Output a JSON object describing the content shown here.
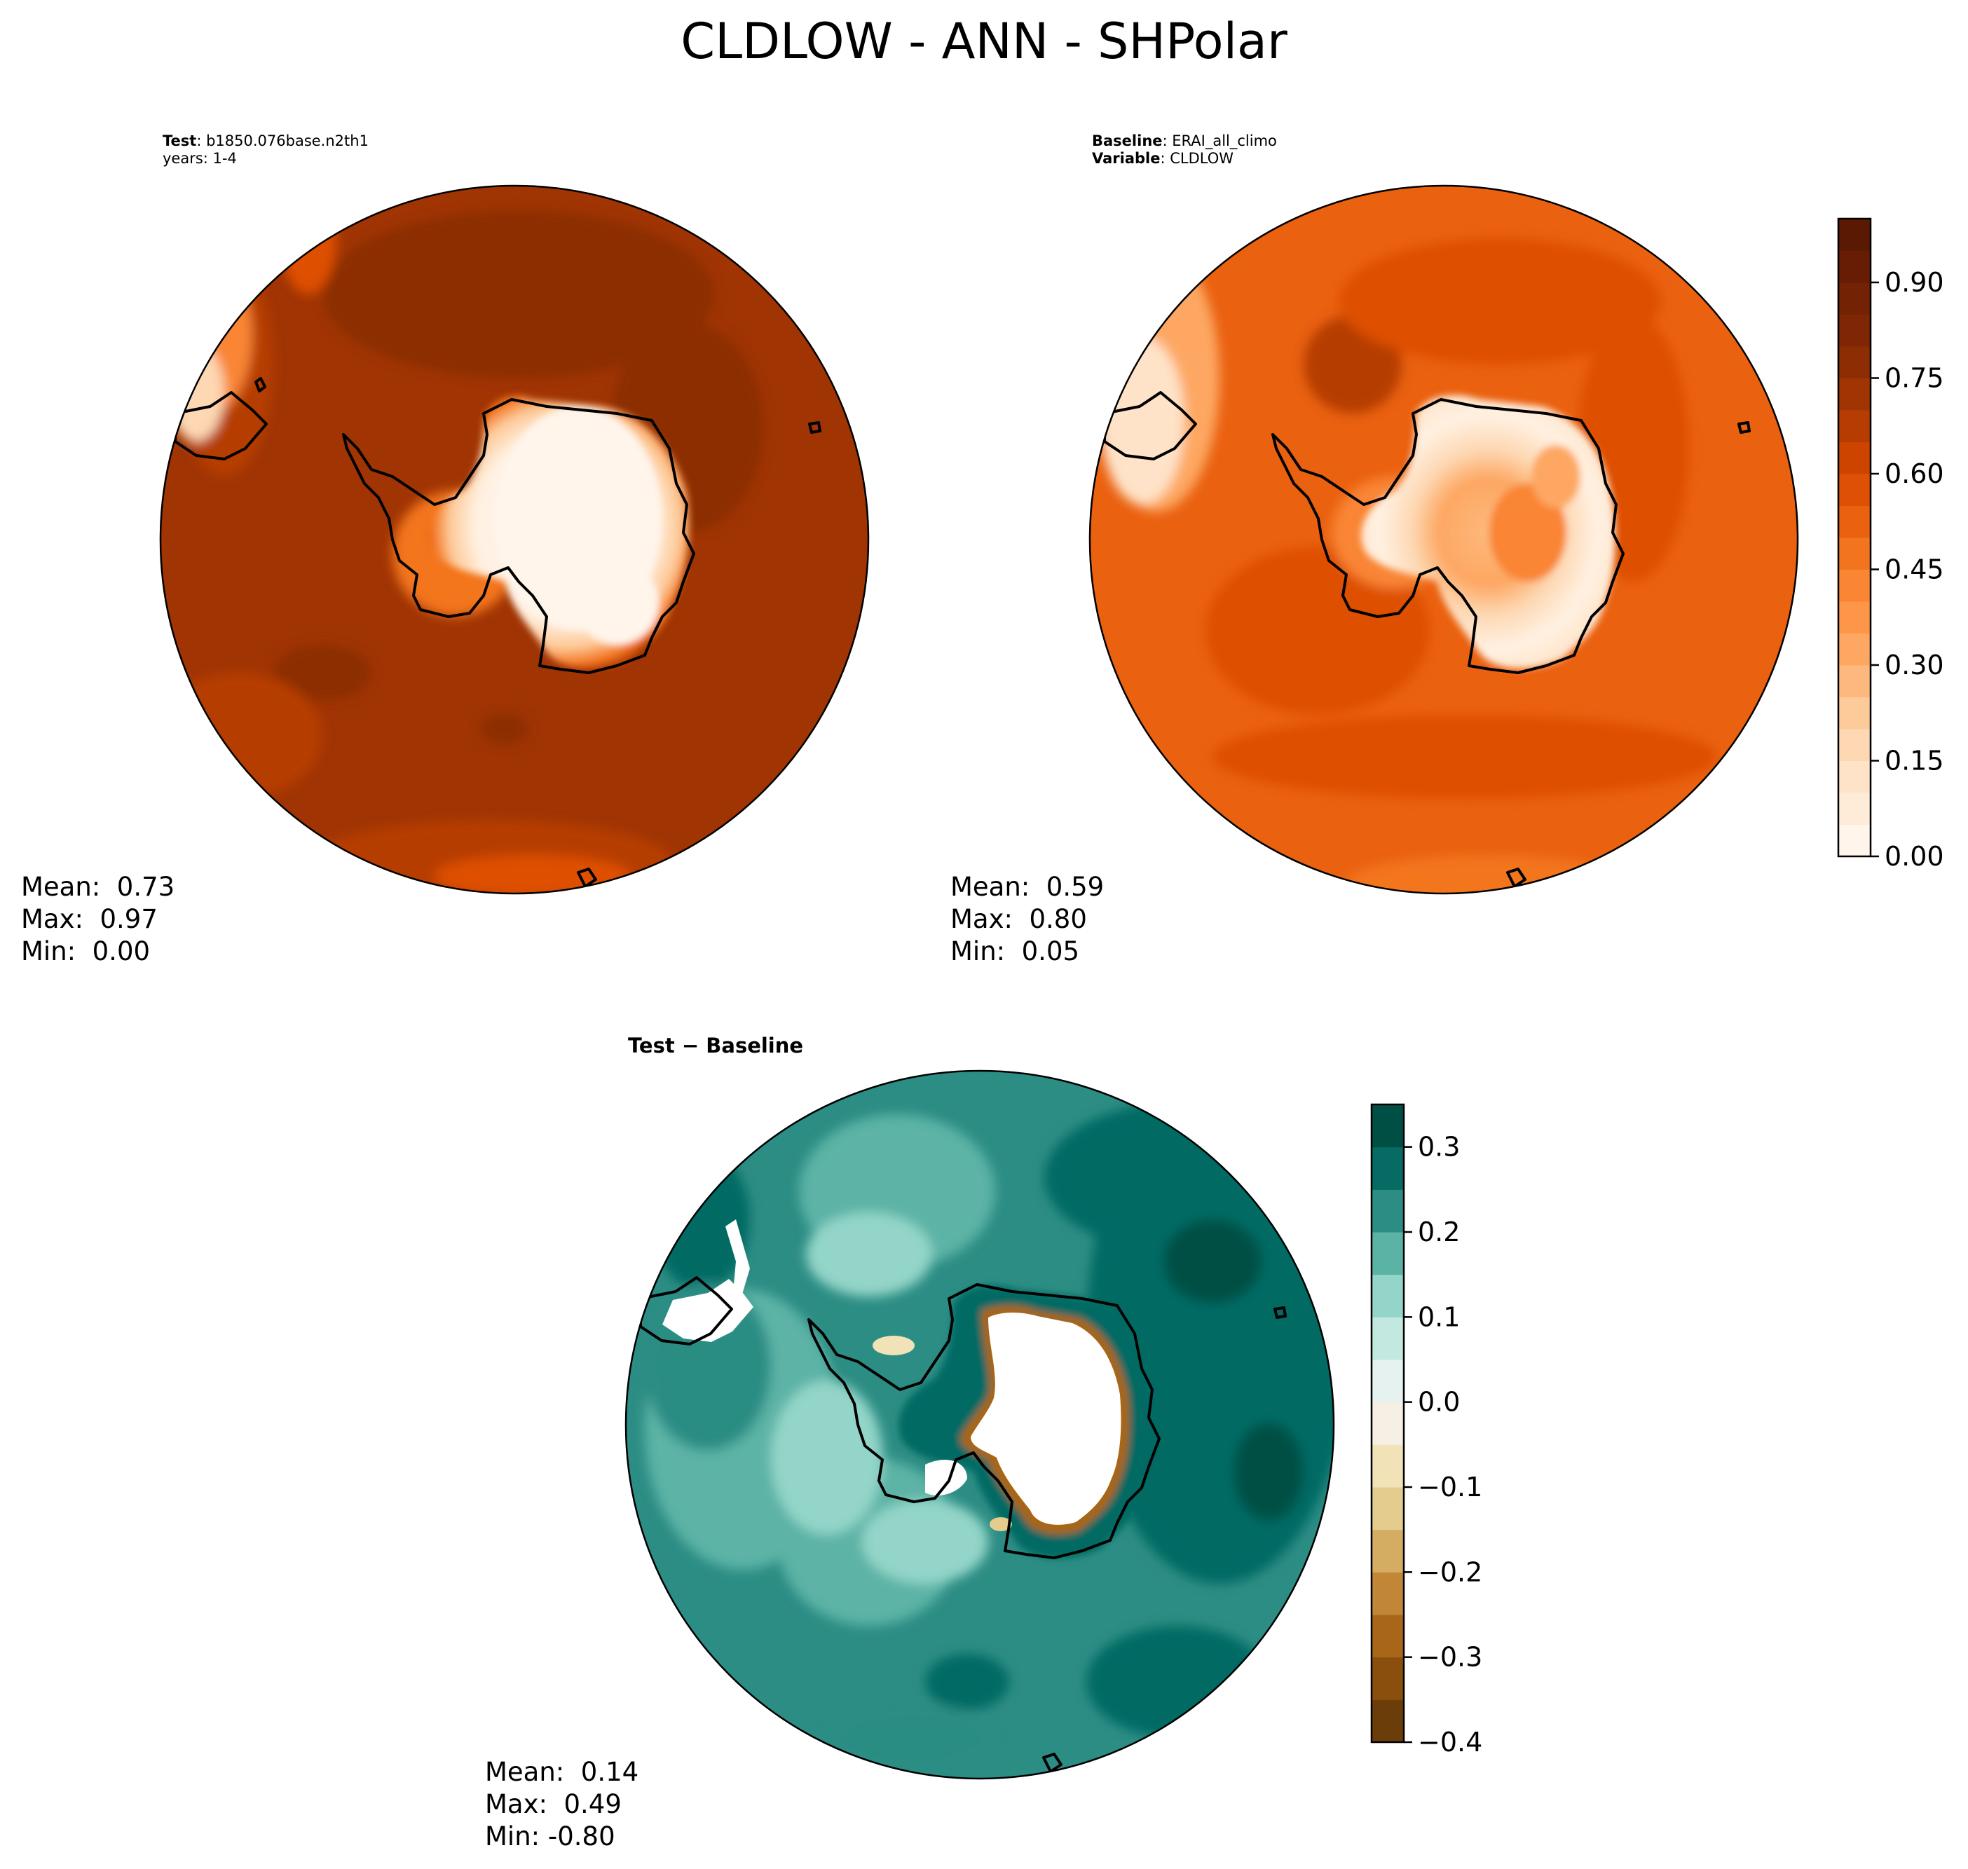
{
  "title": "CLDLOW - ANN - SHPolar",
  "panels": {
    "test": {
      "label": "Test",
      "name": "b1850.076base.n2th1",
      "years": "years: 1-4",
      "stats": {
        "mean": "Mean:  0.73",
        "max": "Max:  0.97",
        "min": "Min:  0.00"
      }
    },
    "baseline": {
      "label": "Baseline",
      "name": "ERAI_all_climo",
      "var_label": "Variable",
      "var_name": "CLDLOW",
      "stats": {
        "mean": "Mean:  0.59",
        "max": "Max:  0.80",
        "min": "Min:  0.05"
      }
    },
    "diff": {
      "title_a": "Test",
      "title_op": "−",
      "title_b": "Baseline",
      "stats": {
        "mean": "Mean:  0.14",
        "max": "Max:  0.49",
        "min": "Min: -0.80"
      }
    }
  },
  "chart_data": [
    {
      "type": "heatmap",
      "projection": "south-polar stereographic",
      "panel": "test",
      "field": "CLDLOW",
      "mean": 0.73,
      "max": 0.97,
      "min": 0.0,
      "colormap": "Oranges"
    },
    {
      "type": "heatmap",
      "projection": "south-polar stereographic",
      "panel": "baseline",
      "field": "CLDLOW",
      "mean": 0.59,
      "max": 0.8,
      "min": 0.05,
      "colormap": "Oranges",
      "colorbar": {
        "levels": [
          0.0,
          0.05,
          0.1,
          0.15,
          0.2,
          0.25,
          0.3,
          0.35,
          0.4,
          0.45,
          0.5,
          0.55,
          0.6,
          0.65,
          0.7,
          0.75,
          0.8,
          0.85,
          0.9,
          0.95,
          1.0
        ],
        "ticks": [
          "0.00",
          "0.15",
          "0.30",
          "0.45",
          "0.60",
          "0.75",
          "0.90"
        ],
        "colors": [
          "#fff5eb",
          "#feecd9",
          "#fee3c8",
          "#fdd8b3",
          "#fdca99",
          "#fdb97d",
          "#fda762",
          "#fd9649",
          "#f98535",
          "#f3741f",
          "#ea6110",
          "#de5005",
          "#cd4401",
          "#b63c02",
          "#a03403",
          "#8c2d04",
          "#7f2704",
          "#732204",
          "#661d04",
          "#5a1903"
        ]
      }
    },
    {
      "type": "heatmap",
      "projection": "south-polar stereographic",
      "panel": "diff",
      "field": "CLDLOW difference",
      "mean": 0.14,
      "max": 0.49,
      "min": -0.8,
      "colormap": "BrBG",
      "colorbar": {
        "levels": [
          -0.4,
          -0.35,
          -0.3,
          -0.25,
          -0.2,
          -0.15,
          -0.1,
          -0.05,
          0.0,
          0.05,
          0.1,
          0.15,
          0.2,
          0.25,
          0.3,
          0.35
        ],
        "ticks": [
          "−0.4",
          "−0.3",
          "−0.2",
          "−0.1",
          "0.0",
          "0.1",
          "0.2",
          "0.3"
        ],
        "colors": [
          "#6b3d08",
          "#8a4f0c",
          "#a86619",
          "#c28637",
          "#d5ad62",
          "#e4cc8e",
          "#f1e2b8",
          "#f5f0e3",
          "#e5f2ef",
          "#c2e8e0",
          "#93d5c8",
          "#5bb3a6",
          "#2c8d84",
          "#056b63",
          "#004f45"
        ]
      }
    }
  ]
}
